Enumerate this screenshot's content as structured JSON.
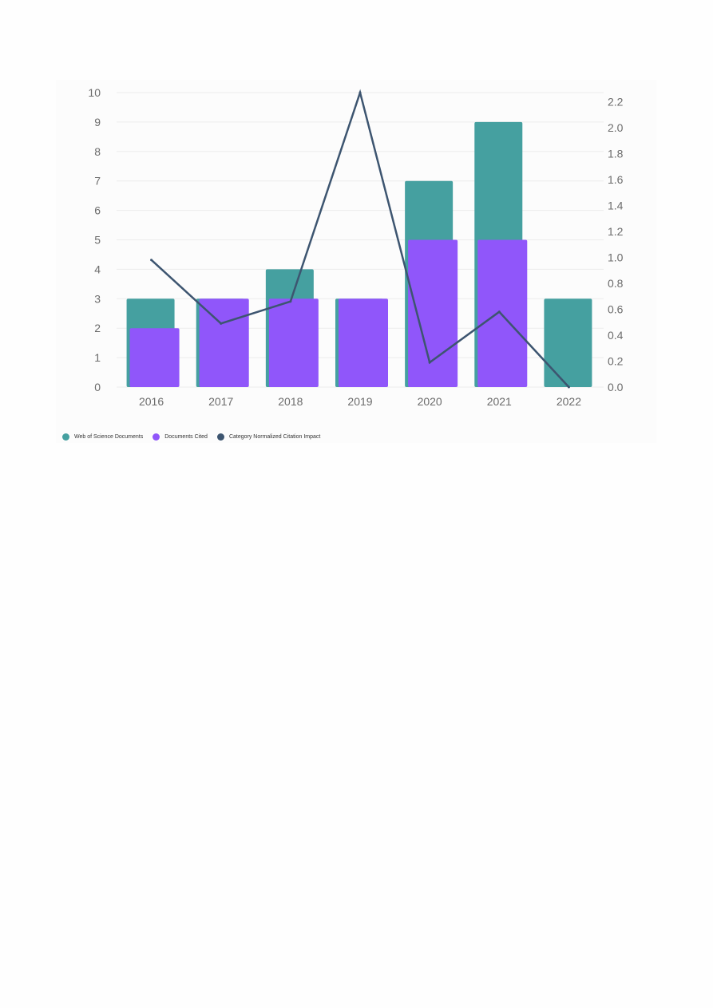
{
  "chart_data": {
    "type": "bar",
    "categories": [
      "2016",
      "2017",
      "2018",
      "2019",
      "2020",
      "2021",
      "2022"
    ],
    "series": [
      {
        "name": "Web of Science Documents",
        "type": "bar",
        "axis": "left",
        "color": "#45a0a0",
        "values": [
          3,
          3,
          4,
          3,
          7,
          9,
          3
        ]
      },
      {
        "name": "Documents Cited",
        "type": "bar",
        "axis": "left",
        "color": "#9056fa",
        "values": [
          2,
          3,
          3,
          3,
          5,
          5,
          null
        ]
      },
      {
        "name": "Category Normalized Citation Impact",
        "type": "line",
        "axis": "right",
        "color": "#3d5570",
        "values": [
          0.98,
          0.49,
          0.66,
          2.27,
          0.19,
          0.58,
          0.0
        ]
      }
    ],
    "y_left": {
      "ylim": [
        0,
        10
      ],
      "ticks": [
        "0",
        "1",
        "2",
        "3",
        "4",
        "5",
        "6",
        "7",
        "8",
        "9",
        "10"
      ]
    },
    "y_right": {
      "ylim": [
        0,
        2.27
      ],
      "ticks": [
        "0.0",
        "0.2",
        "0.4",
        "0.6",
        "0.8",
        "1.0",
        "1.2",
        "1.4",
        "1.6",
        "1.8",
        "2.0",
        "2.2"
      ]
    },
    "title": "",
    "xlabel": "",
    "ylabel": "",
    "grid": true,
    "legend_position": "bottom-left"
  }
}
